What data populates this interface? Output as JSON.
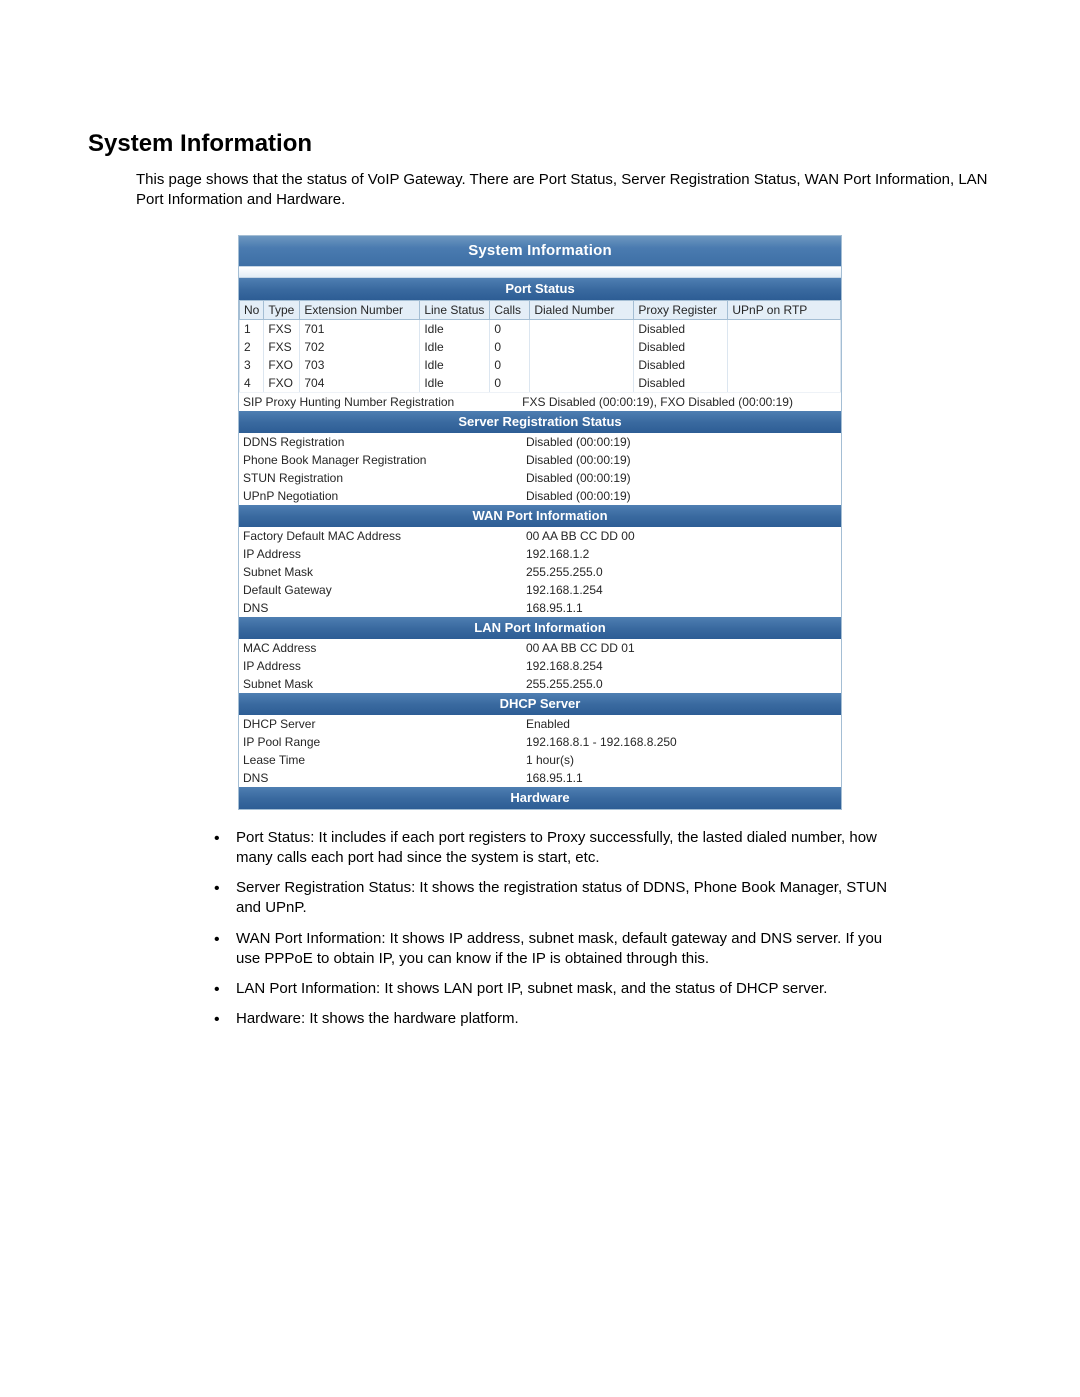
{
  "heading": "System Information",
  "intro": "This page shows that the status of VoIP Gateway. There are Port Status, Server Registration Status, WAN Port Information, LAN Port Information and Hardware.",
  "colors": {
    "header_gradient_from": "#6d97c0",
    "header_gradient_to": "#3d6fa5",
    "section_gradient_from": "#4f7fb2",
    "section_gradient_to": "#2d5d95",
    "border": "#a4bed4",
    "th_bg": "#e4eef7",
    "text": "#262626"
  },
  "main_title": "System Information",
  "port_status": {
    "title": "Port Status",
    "columns": [
      "No",
      "Type",
      "Extension Number",
      "Line Status",
      "Calls",
      "Dialed Number",
      "Proxy Register",
      "UPnP on RTP"
    ],
    "col_widths": [
      "24px",
      "36px",
      "120px",
      "70px",
      "40px",
      "104px",
      "94px",
      "auto"
    ],
    "rows": [
      [
        "1",
        "FXS",
        "701",
        "Idle",
        "0",
        "",
        "Disabled",
        ""
      ],
      [
        "2",
        "FXS",
        "702",
        "Idle",
        "0",
        "",
        "Disabled",
        ""
      ],
      [
        "3",
        "FXO",
        "703",
        "Idle",
        "0",
        "",
        "Disabled",
        ""
      ],
      [
        "4",
        "FXO",
        "704",
        "Idle",
        "0",
        "",
        "Disabled",
        ""
      ]
    ],
    "sip_label": "SIP Proxy Hunting Number Registration",
    "sip_value": "FXS Disabled (00:00:19), FXO Disabled (00:00:19)"
  },
  "server_reg": {
    "title": "Server Registration Status",
    "rows": [
      [
        "DDNS Registration",
        "Disabled (00:00:19)"
      ],
      [
        "Phone Book Manager Registration",
        "Disabled (00:00:19)"
      ],
      [
        "STUN Registration",
        "Disabled (00:00:19)"
      ],
      [
        "UPnP Negotiation",
        "Disabled (00:00:19)"
      ]
    ]
  },
  "wan": {
    "title": "WAN Port Information",
    "rows": [
      [
        "Factory Default MAC Address",
        "00 AA BB CC DD 00"
      ],
      [
        "IP Address",
        "192.168.1.2"
      ],
      [
        "Subnet Mask",
        "255.255.255.0"
      ],
      [
        "Default Gateway",
        "192.168.1.254"
      ],
      [
        "DNS",
        "168.95.1.1"
      ]
    ]
  },
  "lan": {
    "title": "LAN Port Information",
    "rows": [
      [
        "MAC Address",
        "00 AA BB CC DD 01"
      ],
      [
        "IP Address",
        "192.168.8.254"
      ],
      [
        "Subnet Mask",
        "255.255.255.0"
      ]
    ]
  },
  "dhcp": {
    "title": "DHCP Server",
    "rows": [
      [
        "DHCP Server",
        "Enabled"
      ],
      [
        "IP Pool Range",
        "192.168.8.1 - 192.168.8.250"
      ],
      [
        "Lease Time",
        "1 hour(s)"
      ],
      [
        "DNS",
        "168.95.1.1"
      ]
    ]
  },
  "hardware": {
    "title": "Hardware"
  },
  "notes": [
    "Port Status: It includes if each port registers to Proxy successfully, the lasted dialed number, how many calls each port had since the system is start, etc.",
    "Server Registration Status: It shows the registration status of DDNS, Phone Book Manager, STUN and UPnP.",
    "WAN Port Information: It shows IP address, subnet mask, default gateway and DNS server. If you use PPPoE to obtain IP, you can know if the IP is obtained through this.",
    "LAN Port Information: It shows LAN port IP, subnet mask, and the status of DHCP server.",
    "Hardware: It shows the hardware platform."
  ]
}
